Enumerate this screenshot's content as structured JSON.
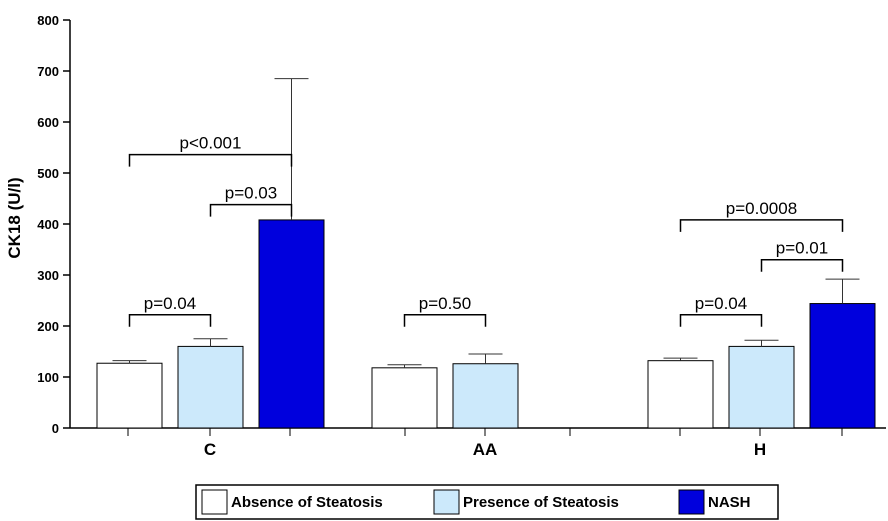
{
  "chart_data": {
    "type": "bar",
    "title": "",
    "xlabel": "",
    "ylabel": "CK18 (U/l)",
    "ylim": [
      0,
      800
    ],
    "yticks": [
      0,
      100,
      200,
      300,
      400,
      500,
      600,
      700,
      800
    ],
    "grid": false,
    "legend_position": "bottom",
    "categories": [
      "C",
      "AA",
      "H"
    ],
    "series": [
      {
        "name": "Absence of Steatosis",
        "color": "#ffffff",
        "values": [
          127,
          118,
          132
        ],
        "errors": [
          5,
          6,
          5
        ]
      },
      {
        "name": "Presence of Steatosis",
        "color": "#cce9fb",
        "values": [
          160,
          126,
          160
        ],
        "errors": [
          15,
          19,
          12
        ]
      },
      {
        "name": "NASH",
        "color": "#0000dd",
        "values": [
          408,
          null,
          244
        ],
        "errors": [
          277,
          null,
          48
        ]
      }
    ],
    "annotations": [
      {
        "text": "p=0.04",
        "category": 0,
        "from": 0,
        "to": 1,
        "y": 222
      },
      {
        "text": "p<0.001",
        "category": 0,
        "from": 0,
        "to": 2,
        "y": 536
      },
      {
        "text": "p=0.03",
        "category": 0,
        "from": 1,
        "to": 2,
        "y": 438
      },
      {
        "text": "p=0.50",
        "category": 1,
        "from": 0,
        "to": 1,
        "y": 222
      },
      {
        "text": "p=0.04",
        "category": 2,
        "from": 0,
        "to": 1,
        "y": 222
      },
      {
        "text": "p=0.0008",
        "category": 2,
        "from": 0,
        "to": 2,
        "y": 408
      },
      {
        "text": "p=0.01",
        "category": 2,
        "from": 1,
        "to": 2,
        "y": 330
      }
    ]
  }
}
